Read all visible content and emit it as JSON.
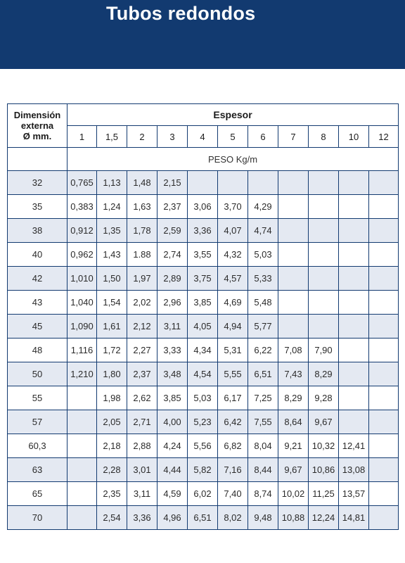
{
  "title": "Tubos redondos",
  "colors": {
    "banner": "#123a70",
    "band": "#e4e9f2",
    "border": "#123a70"
  },
  "table": {
    "dimension_header": [
      "Dimensión",
      "externa",
      "Ø mm."
    ],
    "group_header": "Espesor",
    "unit_label": "PESO Kg/m",
    "thicknesses": [
      "1",
      "1,5",
      "2",
      "3",
      "4",
      "5",
      "6",
      "7",
      "8",
      "10",
      "12"
    ],
    "rows": [
      {
        "dim": "32",
        "values": [
          "0,765",
          "1,13",
          "1,48",
          "2,15",
          "",
          "",
          "",
          "",
          "",
          "",
          ""
        ]
      },
      {
        "dim": "35",
        "values": [
          "0,383",
          "1,24",
          "1,63",
          "2,37",
          "3,06",
          "3,70",
          "4,29",
          "",
          "",
          "",
          ""
        ]
      },
      {
        "dim": "38",
        "values": [
          "0,912",
          "1,35",
          "1,78",
          "2,59",
          "3,36",
          "4,07",
          "4,74",
          "",
          "",
          "",
          ""
        ]
      },
      {
        "dim": "40",
        "values": [
          "0,962",
          "1,43",
          "1.88",
          "2,74",
          "3,55",
          "4,32",
          "5,03",
          "",
          "",
          "",
          ""
        ]
      },
      {
        "dim": "42",
        "values": [
          "1,010",
          "1,50",
          "1,97",
          "2,89",
          "3,75",
          "4,57",
          "5,33",
          "",
          "",
          "",
          ""
        ]
      },
      {
        "dim": "43",
        "values": [
          "1,040",
          "1,54",
          "2,02",
          "2,96",
          "3,85",
          "4,69",
          "5,48",
          "",
          "",
          "",
          ""
        ]
      },
      {
        "dim": "45",
        "values": [
          "1,090",
          "1,61",
          "2,12",
          "3,11",
          "4,05",
          "4,94",
          "5,77",
          "",
          "",
          "",
          ""
        ]
      },
      {
        "dim": "48",
        "values": [
          "1,116",
          "1,72",
          "2,27",
          "3,33",
          "4,34",
          "5,31",
          "6,22",
          "7,08",
          "7,90",
          "",
          ""
        ]
      },
      {
        "dim": "50",
        "values": [
          "1,210",
          "1,80",
          "2,37",
          "3,48",
          "4,54",
          "5,55",
          "6,51",
          "7,43",
          "8,29",
          "",
          ""
        ]
      },
      {
        "dim": "55",
        "values": [
          "",
          "1,98",
          "2,62",
          "3,85",
          "5,03",
          "6,17",
          "7,25",
          "8,29",
          "9,28",
          "",
          ""
        ]
      },
      {
        "dim": "57",
        "values": [
          "",
          "2,05",
          "2,71",
          "4,00",
          "5,23",
          "6,42",
          "7,55",
          "8,64",
          "9,67",
          "",
          ""
        ]
      },
      {
        "dim": "60,3",
        "values": [
          "",
          "2,18",
          "2,88",
          "4,24",
          "5,56",
          "6,82",
          "8,04",
          "9,21",
          "10,32",
          "12,41",
          ""
        ]
      },
      {
        "dim": "63",
        "values": [
          "",
          "2,28",
          "3,01",
          "4,44",
          "5,82",
          "7,16",
          "8,44",
          "9,67",
          "10,86",
          "13,08",
          ""
        ]
      },
      {
        "dim": "65",
        "values": [
          "",
          "2,35",
          "3,11",
          "4,59",
          "6,02",
          "7,40",
          "8,74",
          "10,02",
          "11,25",
          "13,57",
          ""
        ]
      },
      {
        "dim": "70",
        "values": [
          "",
          "2,54",
          "3,36",
          "4,96",
          "6,51",
          "8,02",
          "9,48",
          "10,88",
          "12,24",
          "14,81",
          ""
        ]
      }
    ]
  }
}
